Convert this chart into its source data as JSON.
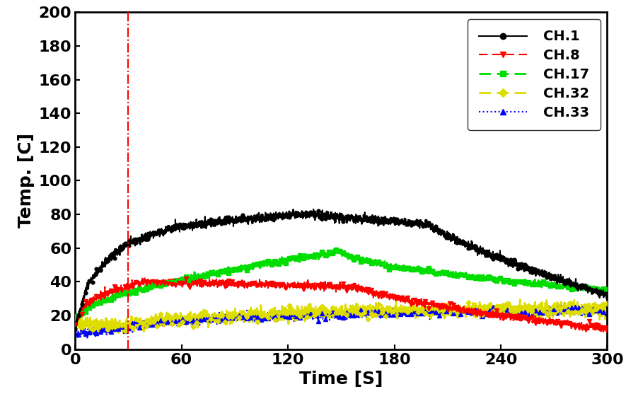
{
  "title": "",
  "xlabel": "Time [S]",
  "ylabel": "Temp. [C]",
  "xlim": [
    0,
    300
  ],
  "ylim": [
    0,
    200
  ],
  "xticks": [
    0,
    60,
    120,
    180,
    240,
    300
  ],
  "yticks": [
    0,
    20,
    40,
    60,
    80,
    100,
    120,
    140,
    160,
    180,
    200
  ],
  "vline_x": 30,
  "vline_color": "#ff0000",
  "vline_style": "-.",
  "channels": [
    "CH.1",
    "CH.8",
    "CH.17",
    "CH.32",
    "CH.33"
  ],
  "colors": [
    "#000000",
    "#ff0000",
    "#00dd00",
    "#dddd00",
    "#0000ff"
  ],
  "line_styles": [
    "-",
    "--",
    "--",
    "--",
    ":"
  ],
  "markers": [
    "o",
    "v",
    "s",
    "D",
    "^"
  ],
  "figsize": [
    8.85,
    5.74
  ],
  "dpi": 100,
  "tick_fontsize": 16,
  "label_fontsize": 18,
  "legend_fontsize": 14,
  "noise_ch1": 1.2,
  "noise_ch8": 1.0,
  "noise_ch17": 0.8,
  "noise_ch32": 2.0,
  "noise_ch33": 1.2
}
